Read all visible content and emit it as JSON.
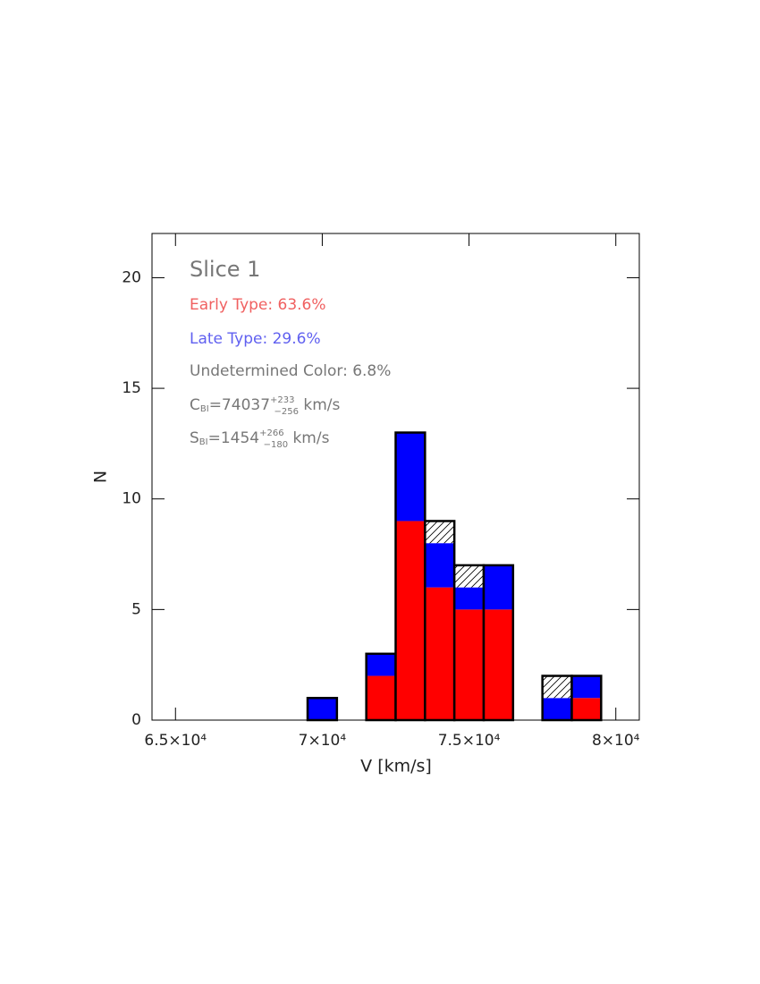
{
  "chart_data": {
    "type": "histogram",
    "xlabel": "V [km/s]",
    "ylabel": "N",
    "bins": [
      69500,
      70500,
      71500,
      72500,
      73500,
      74500,
      75500,
      76500,
      77500,
      78500,
      79500
    ],
    "series": [
      {
        "name": "Early Type",
        "color": "#ff0000",
        "values": [
          0,
          0,
          2,
          9,
          6,
          5,
          5,
          0,
          0,
          1
        ]
      },
      {
        "name": "Late Type",
        "color": "#0000ff",
        "values": [
          1,
          0,
          1,
          4,
          2,
          1,
          2,
          0,
          1,
          1
        ]
      },
      {
        "name": "Undetermined Color",
        "color": "#000000",
        "pattern": "hatch",
        "values": [
          0,
          0,
          0,
          0,
          1,
          1,
          0,
          0,
          1,
          0
        ]
      }
    ],
    "xlim": [
      64200,
      80800
    ],
    "ylim": [
      0,
      22
    ],
    "xticks": [
      {
        "value": 65000,
        "label": "6.5×10⁴"
      },
      {
        "value": 70000,
        "label": "7×10⁴"
      },
      {
        "value": 75000,
        "label": "7.5×10⁴"
      },
      {
        "value": 80000,
        "label": "8×10⁴"
      }
    ],
    "yticks": [
      0,
      5,
      10,
      15,
      20
    ],
    "annotations": {
      "slice": "Slice 1",
      "early": "Early Type: 63.6%",
      "late": "Late Type: 29.6%",
      "undetermined": "Undetermined Color: 6.8%",
      "center": {
        "symbol": "C",
        "sub": "BI",
        "value": "=74037",
        "plus": "+233",
        "minus": "−256",
        "unit": " km/s"
      },
      "scale": {
        "symbol": "S",
        "sub": "BI",
        "value": "=1454",
        "plus": "+266",
        "minus": "−180",
        "unit": " km/s"
      }
    }
  }
}
